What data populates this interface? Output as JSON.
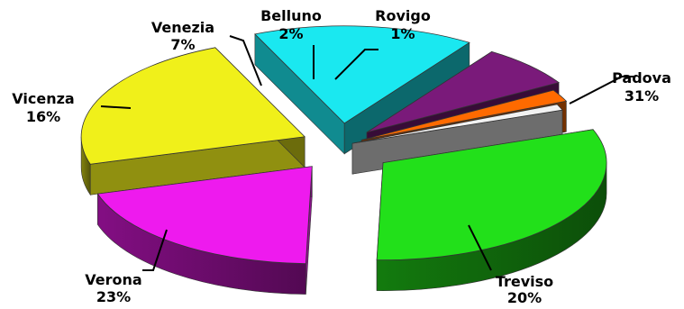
{
  "chart_data": {
    "type": "pie",
    "style": "3d-exploded",
    "labels": [
      "Padova",
      "Treviso",
      "Verona",
      "Vicenza",
      "Venezia",
      "Belluno",
      "Rovigo"
    ],
    "values": [
      31,
      20,
      23,
      16,
      7,
      2,
      1
    ],
    "value_labels": [
      "31%",
      "20%",
      "23%",
      "16%",
      "7%",
      "2%",
      "1%"
    ],
    "colors": [
      "#22e01a",
      "#ee1aee",
      "#f0f01a",
      "#1ae8f0",
      "#7a1a7a",
      "#ff6a00",
      "#f2f2f2"
    ],
    "legend": "none"
  }
}
